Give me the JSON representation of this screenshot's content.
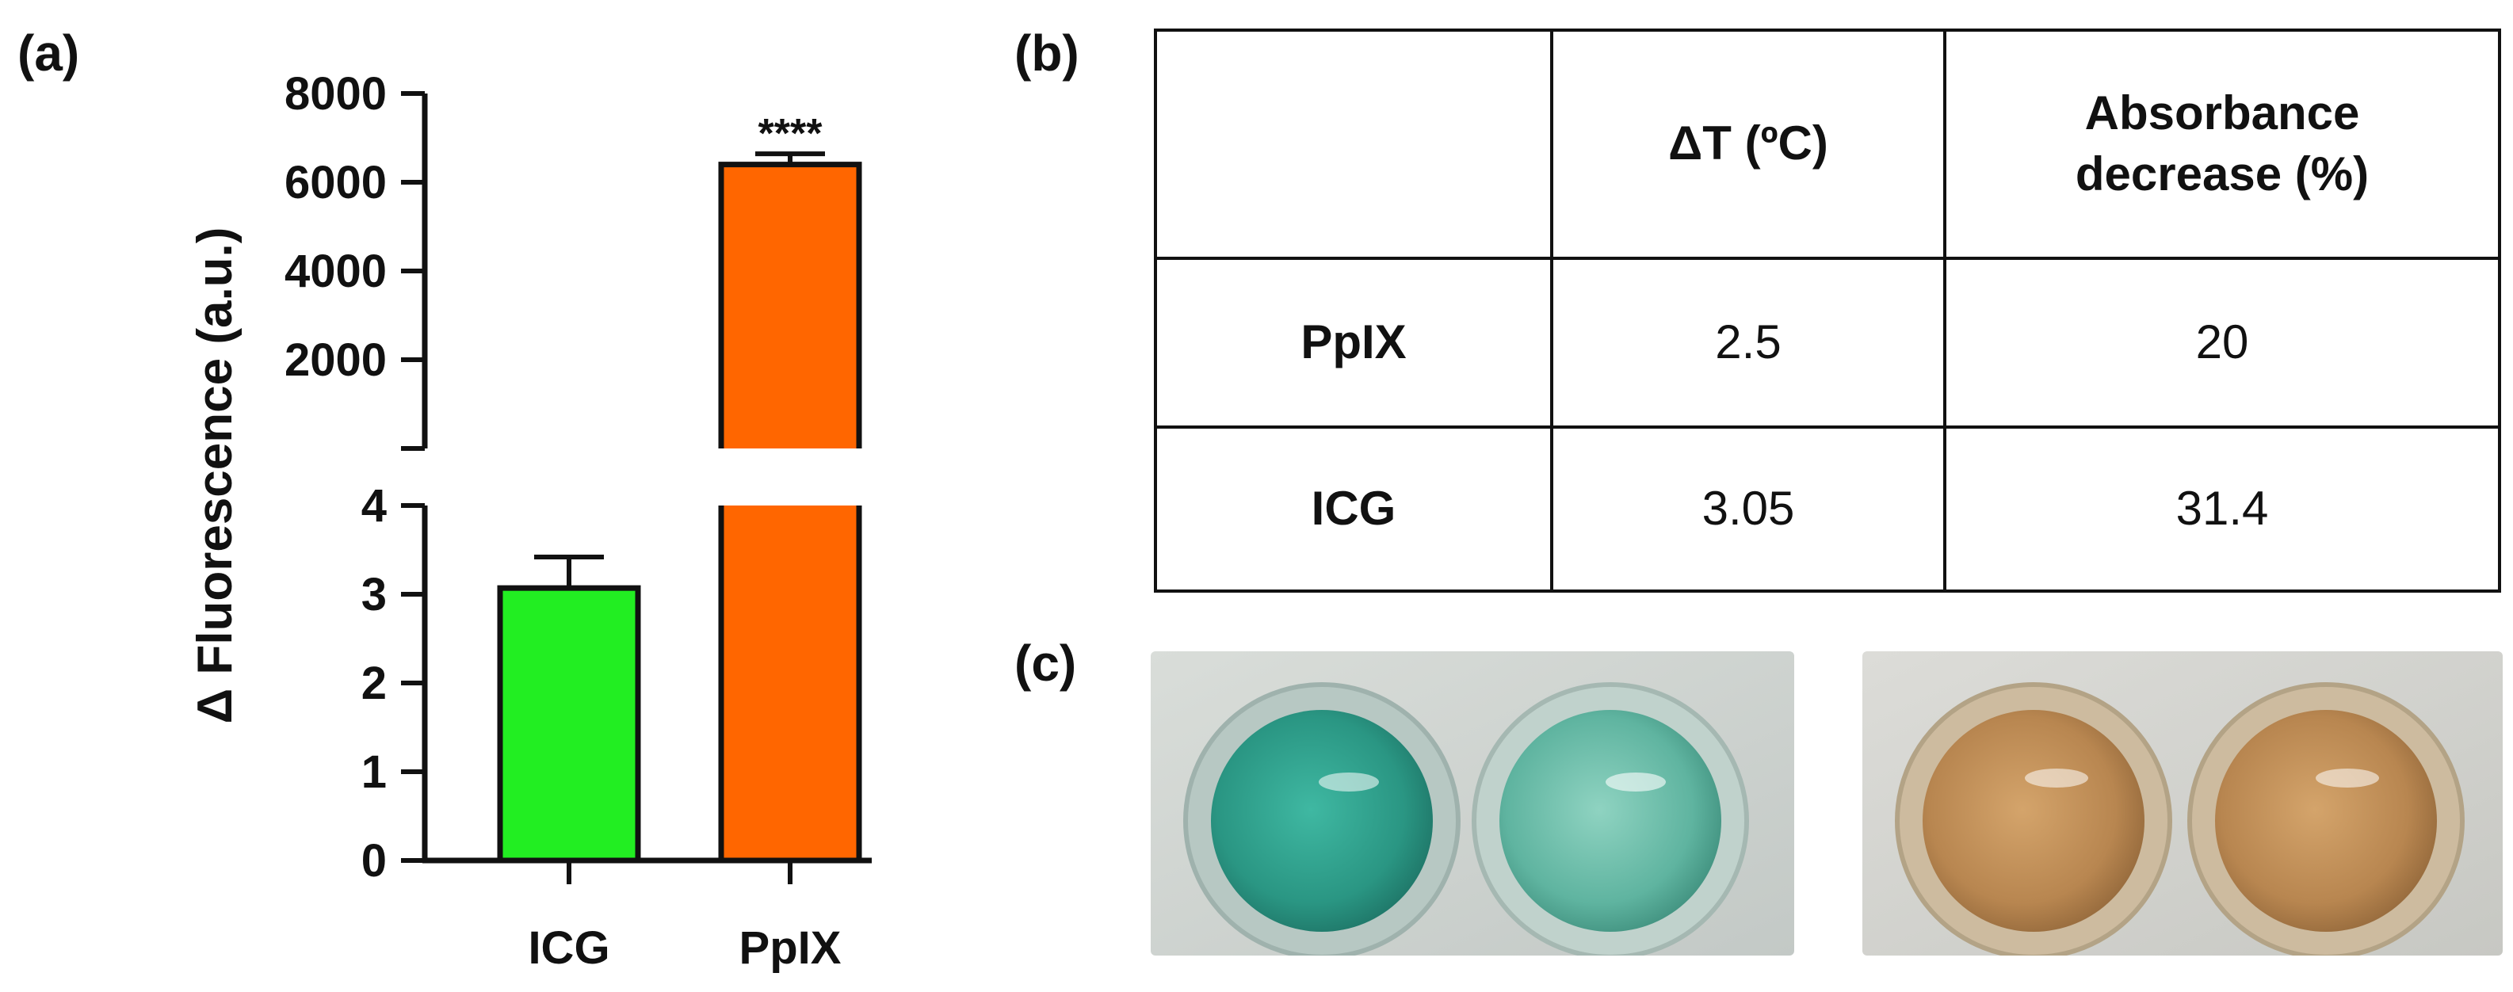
{
  "panels": {
    "a": "(a)",
    "b": "(b)",
    "c": "(c)"
  },
  "chart_data": {
    "type": "bar",
    "broken_axis": true,
    "categories": [
      "ICG",
      "PpIX"
    ],
    "values": [
      3.07,
      6400
    ],
    "error_upper": [
      3.42,
      6640
    ],
    "colors": [
      "#22ee22",
      "#ff6600"
    ],
    "significance": [
      "",
      "****"
    ],
    "ylabel": "Δ Fluorescence (a.u.)",
    "xlabel": "",
    "ylim_lower": [
      0,
      4
    ],
    "ylim_upper": [
      0,
      8000
    ],
    "yticks_lower": [
      "0",
      "1",
      "2",
      "3",
      "4"
    ],
    "yticks_upper": [
      "2000",
      "4000",
      "6000",
      "8000"
    ]
  },
  "table": {
    "headers": [
      "",
      "ΔT (ºC)",
      "Absorbance decrease (%)"
    ],
    "rows": [
      {
        "label": "PpIX",
        "delta_t": "2.5",
        "absorbance": "20"
      },
      {
        "label": "ICG",
        "delta_t": "3.05",
        "absorbance": "31.4"
      }
    ]
  },
  "photos": {
    "left": {
      "description_icon": "wells-green-icon",
      "colors": [
        "#2fa491",
        "#6cc0ac"
      ]
    },
    "right": {
      "description_icon": "wells-orange-icon",
      "colors": [
        "#b98a55",
        "#c89a63"
      ]
    }
  }
}
